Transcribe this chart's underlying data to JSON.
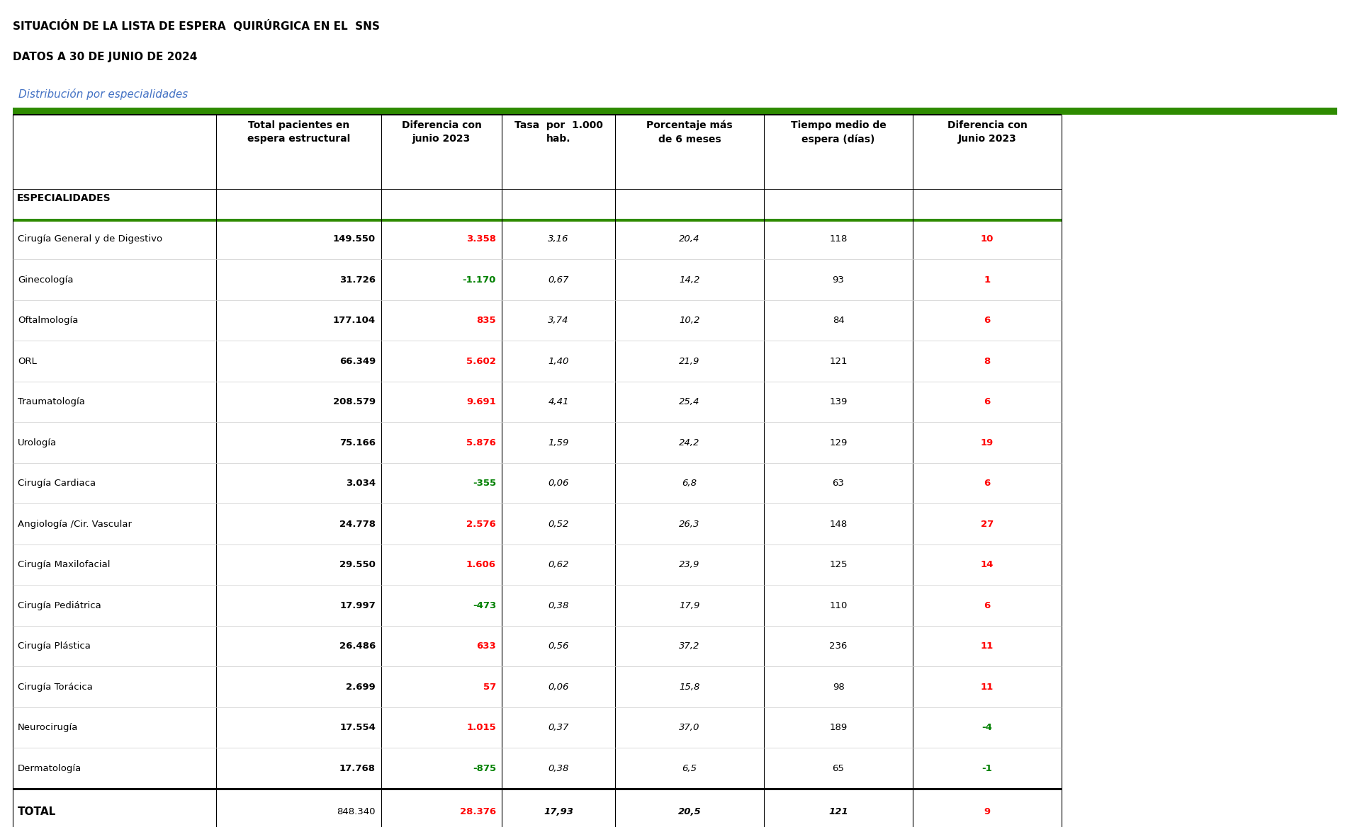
{
  "title1": "SITUACIÓN DE LA LISTA DE ESPERA  QUIRÚRGICA EN EL  SNS",
  "title2": "DATOS A 30 DE JUNIO DE 2024",
  "subtitle": "Distribución por especialidades",
  "col_headers": [
    "Total pacientes en\nespera estructural",
    "Diferencia con\njunio 2023",
    "Tasa  por  1.000\nhab.",
    "Porcentaje más\nde 6 meses",
    "Tiempo medio de\nespera (días)",
    "Diferencia con\nJunio 2023"
  ],
  "row_header": "ESPECIALIDADES",
  "specialties": [
    "Cirugía General y de Digestivo",
    "Ginecología",
    "Oftalmología",
    "ORL",
    "Traumatología",
    "Urología",
    "Cirugía Cardiaca",
    "Angiología /Cir. Vascular",
    "Cirugía Maxilofacial",
    "Cirugía Pediátrica",
    "Cirugía Plástica",
    "Cirugía Torácica",
    "Neurocirugía",
    "Dermatología"
  ],
  "col1": [
    "149.550",
    "31.726",
    "177.104",
    "66.349",
    "208.579",
    "75.166",
    "3.034",
    "24.778",
    "29.550",
    "17.997",
    "26.486",
    "2.699",
    "17.554",
    "17.768"
  ],
  "col2": [
    "3.358",
    "-1.170",
    "835",
    "5.602",
    "9.691",
    "5.876",
    "-355",
    "2.576",
    "1.606",
    "-473",
    "633",
    "57",
    "1.015",
    "-875"
  ],
  "col2_colors": [
    "red",
    "green",
    "red",
    "red",
    "red",
    "red",
    "green",
    "red",
    "red",
    "green",
    "red",
    "red",
    "red",
    "green"
  ],
  "col3": [
    "3,16",
    "0,67",
    "3,74",
    "1,40",
    "4,41",
    "1,59",
    "0,06",
    "0,52",
    "0,62",
    "0,38",
    "0,56",
    "0,06",
    "0,37",
    "0,38"
  ],
  "col4": [
    "20,4",
    "14,2",
    "10,2",
    "21,9",
    "25,4",
    "24,2",
    "6,8",
    "26,3",
    "23,9",
    "17,9",
    "37,2",
    "15,8",
    "37,0",
    "6,5"
  ],
  "col5": [
    "118",
    "93",
    "84",
    "121",
    "139",
    "129",
    "63",
    "148",
    "125",
    "110",
    "236",
    "98",
    "189",
    "65"
  ],
  "col6": [
    "10",
    "1",
    "6",
    "8",
    "6",
    "19",
    "6",
    "27",
    "14",
    "6",
    "11",
    "11",
    "-4",
    "-1"
  ],
  "col6_colors": [
    "red",
    "red",
    "red",
    "red",
    "red",
    "red",
    "red",
    "red",
    "red",
    "red",
    "red",
    "red",
    "green",
    "green"
  ],
  "total_row": [
    "848.340",
    "28.376",
    "17,93",
    "20,5",
    "121",
    "9"
  ],
  "green_bar_color": "#2e8b00",
  "subtitle_color": "#4472C4",
  "title_color": "#000000",
  "green_line_color": "#2e8b00"
}
